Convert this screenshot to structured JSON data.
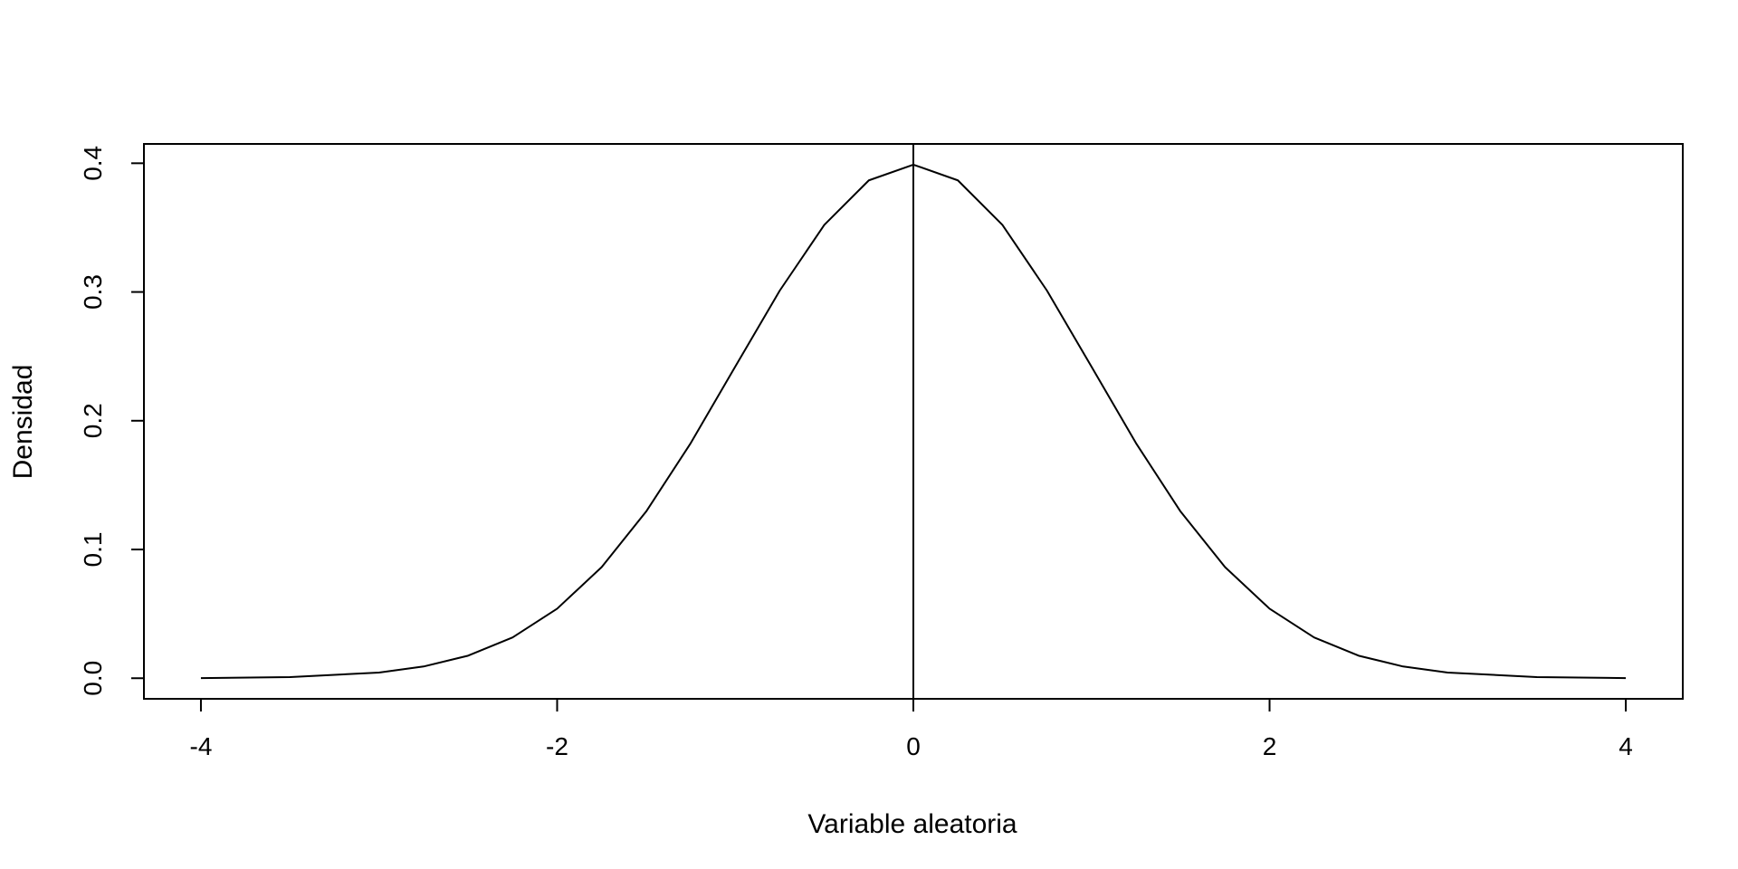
{
  "chart_data": {
    "type": "line",
    "title": "",
    "xlabel": "Variable aleatoria",
    "ylabel": "Densidad",
    "xlim": [
      -4.32,
      4.32
    ],
    "ylim": [
      -0.016,
      0.415
    ],
    "x_ticks": [
      -4,
      -2,
      0,
      2,
      4
    ],
    "x_tick_labels": [
      "-4",
      "-2",
      "0",
      "2",
      "4"
    ],
    "y_ticks": [
      0.0,
      0.1,
      0.2,
      0.3,
      0.4
    ],
    "y_tick_labels": [
      "0.0",
      "0.1",
      "0.2",
      "0.3",
      "0.4"
    ],
    "grid": false,
    "legend": "none",
    "series": [
      {
        "color": "#000000",
        "x": [
          -4,
          -3.5,
          -3,
          -2.75,
          -2.5,
          -2.25,
          -2,
          -1.75,
          -1.5,
          -1.25,
          -1,
          -0.75,
          -0.5,
          -0.25,
          0,
          0.25,
          0.5,
          0.75,
          1,
          1.25,
          1.5,
          1.75,
          2,
          2.25,
          2.5,
          2.75,
          3,
          3.5,
          4
        ],
        "y": [
          0.0001,
          0.0009,
          0.0044,
          0.0091,
          0.0175,
          0.0317,
          0.054,
          0.0863,
          0.1295,
          0.1826,
          0.242,
          0.3011,
          0.3521,
          0.3867,
          0.3989,
          0.3867,
          0.3521,
          0.3011,
          0.242,
          0.1826,
          0.1295,
          0.0863,
          0.054,
          0.0317,
          0.0175,
          0.0091,
          0.0044,
          0.0009,
          0.0001
        ]
      }
    ],
    "vertical_lines": [
      0
    ],
    "colors": {
      "line": "#000000",
      "background": "#ffffff"
    }
  }
}
